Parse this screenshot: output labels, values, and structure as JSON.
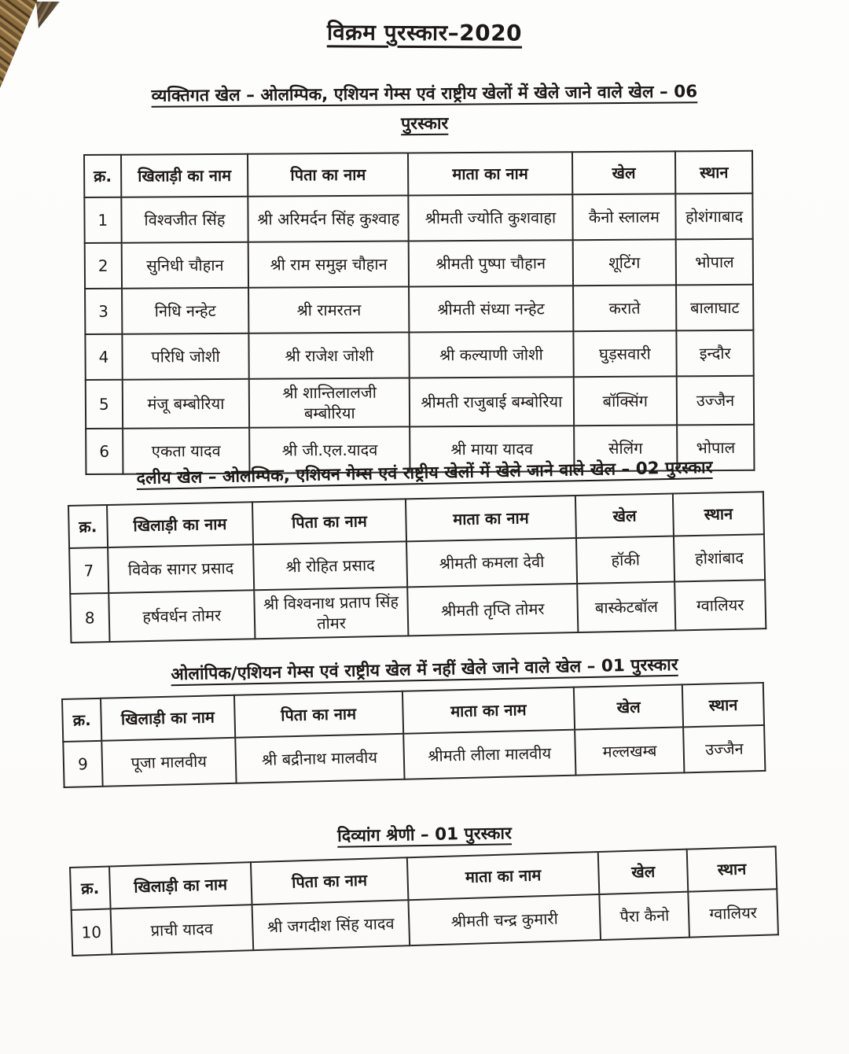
{
  "document": {
    "title": "विक्रम पुरस्कार–2020"
  },
  "colors": {
    "paper": "#fdfdfc",
    "ink": "#1c1916",
    "table_border": "#2b2925",
    "corner_artifact_brown": "#8a6b3e"
  },
  "sections": [
    {
      "heading_lines": [
        "व्यक्तिगत खेल – ओलम्पिक, एशियन गेम्स एवं राष्ट्रीय खेलों में खेले जाने वाले खेल – 06",
        "पुरस्कार"
      ],
      "columns": [
        "क्र.",
        "खिलाड़ी का नाम",
        "पिता का नाम",
        "माता का नाम",
        "खेल",
        "स्थान"
      ],
      "rows": [
        [
          "1",
          "विश्वजीत सिंह",
          "श्री अरिमर्दन सिंह कुश्वाह",
          "श्रीमती ज्योति कुशवाहा",
          "कैनो स्लालम",
          "होशंगाबाद"
        ],
        [
          "2",
          "सुनिधी चौहान",
          "श्री राम समुझ चौहान",
          "श्रीमती पुष्पा चौहान",
          "शूटिंग",
          "भोपाल"
        ],
        [
          "3",
          "निधि नन्हेट",
          "श्री रामरतन",
          "श्रीमती संध्या नन्हेट",
          "कराते",
          "बालाघाट"
        ],
        [
          "4",
          "परिधि जोशी",
          "श्री राजेश जोशी",
          "श्री कल्याणी जोशी",
          "घुड़सवारी",
          "इन्दौर"
        ],
        [
          "5",
          "मंजू बम्बोरिया",
          "श्री शान्तिलालजी बम्बोरिया",
          "श्रीमती राजुबाई बम्बोरिया",
          "बॉक्सिंग",
          "उज्जैन"
        ],
        [
          "6",
          "एकता यादव",
          "श्री जी.एल.यादव",
          "श्री माया यादव",
          "सेलिंग",
          "भोपाल"
        ]
      ]
    },
    {
      "heading_lines": [
        "दलीय खेल – ओलम्पिक, एशियन गेम्स एवं राष्ट्रीय खेलों में खेले जाने वाले खेल – 02 पुरस्कार"
      ],
      "columns": [
        "क्र.",
        "खिलाड़ी का नाम",
        "पिता का नाम",
        "माता का नाम",
        "खेल",
        "स्थान"
      ],
      "rows": [
        [
          "7",
          "विवेक सागर प्रसाद",
          "श्री रोहित प्रसाद",
          "श्रीमती कमला देवी",
          "हॉकी",
          "होशांबाद"
        ],
        [
          "8",
          "हर्षवर्धन तोमर",
          "श्री विश्वनाथ प्रताप सिंह तोमर",
          "श्रीमती तृप्ति तोमर",
          "बास्केटबॉल",
          "ग्वालियर"
        ]
      ]
    },
    {
      "heading_lines": [
        "ओलांपिक/एशियन गेम्स एवं राष्ट्रीय खेल में नहीं खेले जाने वाले खेल – 01 पुरस्कार"
      ],
      "columns": [
        "क्र.",
        "खिलाड़ी का नाम",
        "पिता का नाम",
        "माता का नाम",
        "खेल",
        "स्थान"
      ],
      "rows": [
        [
          "9",
          "पूजा मालवीय",
          "श्री बद्रीनाथ मालवीय",
          "श्रीमती लीला मालवीय",
          "मल्लखम्ब",
          "उज्जैन"
        ]
      ]
    },
    {
      "heading_lines": [
        "दिव्यांग श्रेणी – 01 पुरस्कार"
      ],
      "columns": [
        "क्र.",
        "खिलाड़ी का नाम",
        "पिता का नाम",
        "माता का नाम",
        "खेल",
        "स्थान"
      ],
      "rows": [
        [
          "10",
          "प्राची यादव",
          "श्री जगदीश सिंह यादव",
          "श्रीमती चन्द्र कुमारी",
          "पैरा कैनो",
          "ग्वालियर"
        ]
      ]
    }
  ]
}
